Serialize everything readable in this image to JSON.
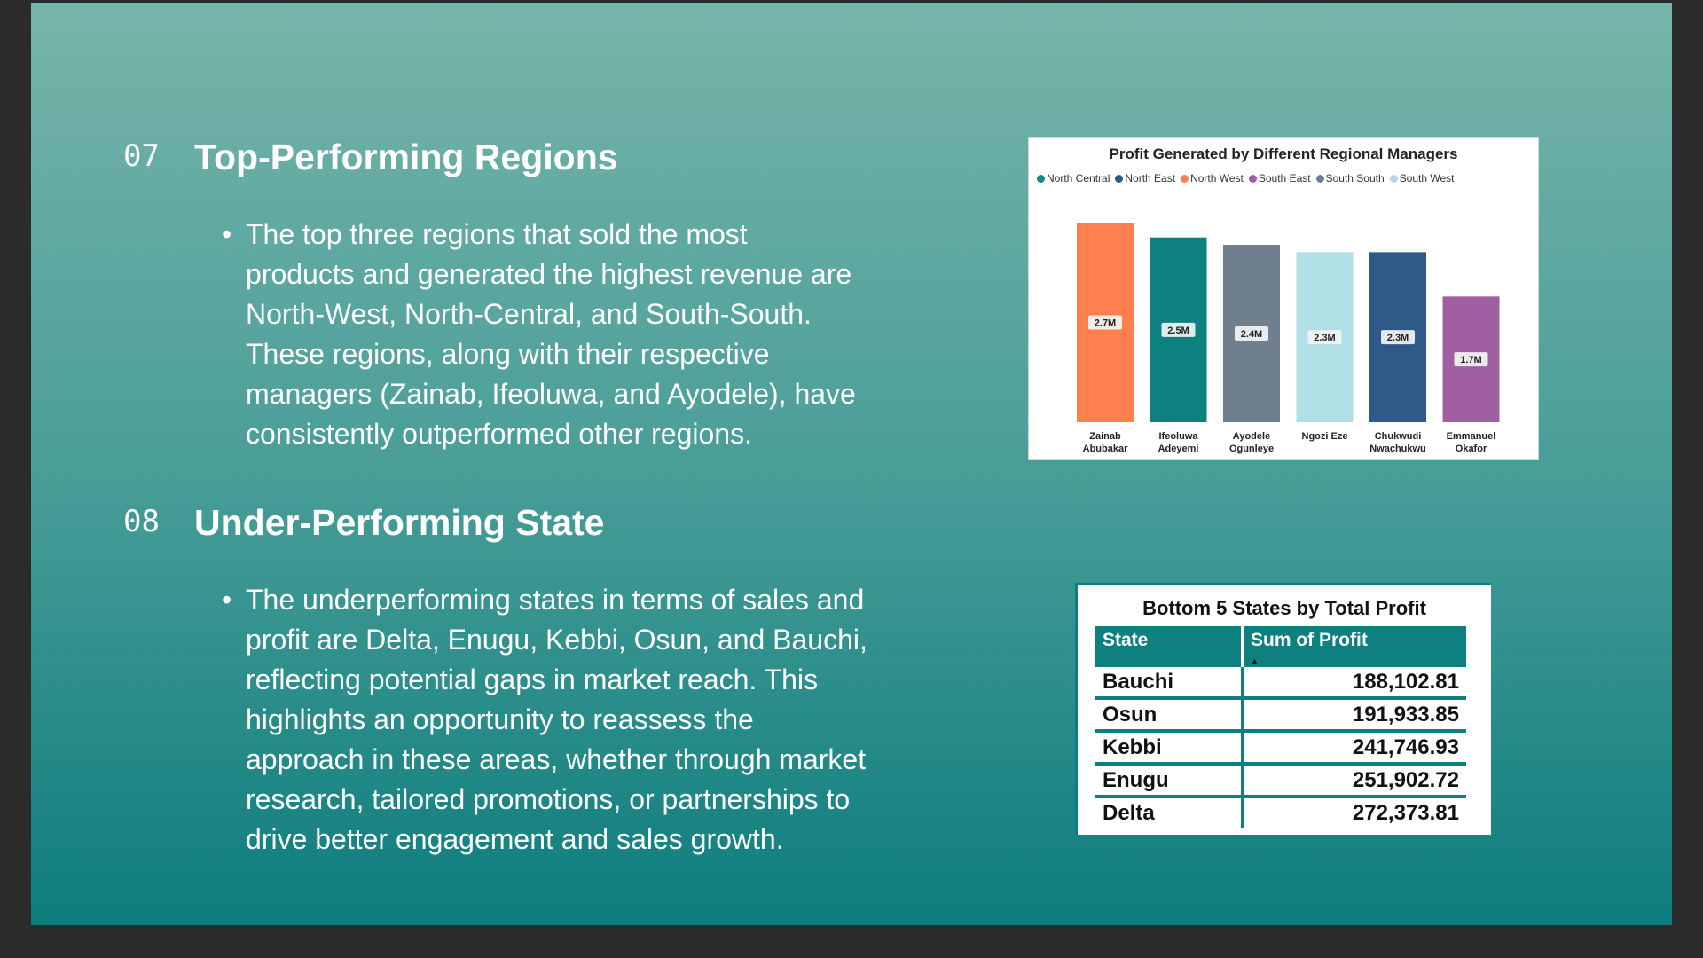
{
  "sections": [
    {
      "number": "07",
      "title": "Top-Performing Regions",
      "lines": [
        "The top three regions that sold the most",
        "products and generated the highest revenue are",
        "North-West, North-Central, and South-South.",
        "These regions, along with their respective",
        "managers (Zainab, Ifeoluwa, and Ayodele), have",
        "consistently outperformed other regions."
      ]
    },
    {
      "number": "08",
      "title": "Under-Performing State",
      "lines": [
        "The underperforming states in terms of sales and",
        "profit are Delta, Enugu, Kebbi, Osun, and Bauchi,",
        "reflecting potential gaps in market reach. This",
        "highlights an opportunity to reassess the",
        "approach in these areas, whether through market",
        "research, tailored promotions, or partnerships to",
        "drive better engagement and sales growth."
      ]
    }
  ],
  "bullet_glyph": "•",
  "chart_data": [
    {
      "type": "bar",
      "title": "Profit Generated by Different Regional Managers",
      "legend": [
        {
          "name": "North Central",
          "color": "#0d8a8a"
        },
        {
          "name": "North East",
          "color": "#2e5a87"
        },
        {
          "name": "North West",
          "color": "#ff7f4f"
        },
        {
          "name": "South East",
          "color": "#a05fa0"
        },
        {
          "name": "South South",
          "color": "#6f7f8e"
        },
        {
          "name": "South West",
          "color": "#aedce2"
        }
      ],
      "legend_placement": "top-left",
      "categories": [
        [
          "Zainab",
          "Abubakar"
        ],
        [
          "Ifeoluwa",
          "Adeyemi"
        ],
        [
          "Ayodele",
          "Ogunleye"
        ],
        [
          "Ngozi Eze"
        ],
        [
          "Chukwudi",
          "Nwachukwu"
        ],
        [
          "Emmanuel",
          "Okafor"
        ]
      ],
      "values": [
        2.7,
        2.5,
        2.4,
        2.3,
        2.3,
        1.7
      ],
      "value_unit": "M",
      "data_labels": [
        "2.7M",
        "2.5M",
        "2.4M",
        "2.3M",
        "2.3M",
        "1.7M"
      ],
      "colors": [
        "#ff7f4f",
        "#0d8080",
        "#6f7f8e",
        "#b0dfe5",
        "#2e5a87",
        "#a05fa0"
      ],
      "ylim": [
        0,
        2.7
      ],
      "grid": false
    },
    {
      "type": "table",
      "title": "Bottom 5 States by Total Profit",
      "columns": [
        "State",
        "Sum of Profit"
      ],
      "sort": "ascending",
      "rows": [
        [
          "Bauchi",
          "188,102.81"
        ],
        [
          "Osun",
          "191,933.85"
        ],
        [
          "Kebbi",
          "241,746.93"
        ],
        [
          "Enugu",
          "251,902.72"
        ],
        [
          "Delta",
          "272,373.81"
        ]
      ]
    }
  ]
}
